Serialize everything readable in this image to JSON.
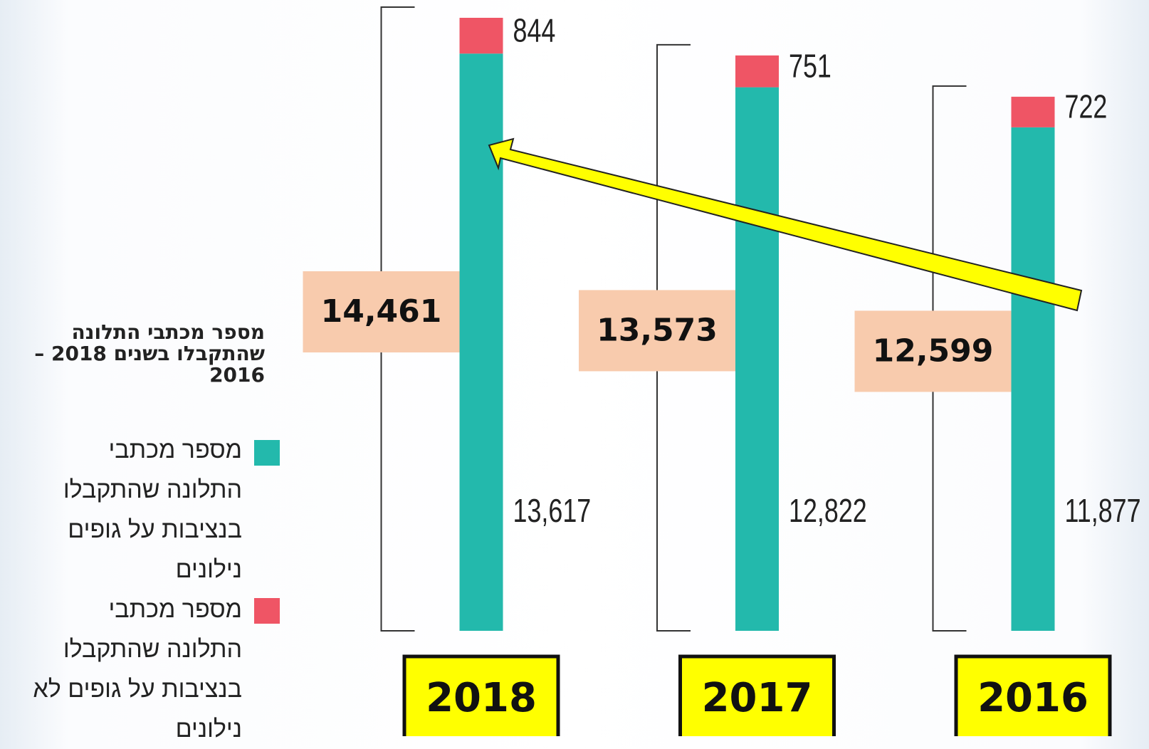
{
  "chart_data": {
    "type": "bar",
    "stacked": true,
    "title": "מספר מכתבי התלונה שהתקבלו בשנים 2018 – 2016",
    "categories": [
      "2018",
      "2017",
      "2016"
    ],
    "series": [
      {
        "name": "מספר מכתבי התלונה שהתקבלו בנציבות על גופים נילונים",
        "color": "#23b9ac",
        "values": [
          13617,
          12822,
          11877
        ],
        "value_labels": [
          "13,617",
          "12,822",
          "11,877"
        ]
      },
      {
        "name": "מספר מכתבי התלונה שהתקבלו בנציבות על גופים לא נילונים",
        "color": "#ef5565",
        "values": [
          844,
          751,
          722
        ]
      }
    ],
    "totals": [
      14461,
      13573,
      12599
    ],
    "total_labels": [
      "14,461",
      "13,573",
      "12,599"
    ]
  }
}
